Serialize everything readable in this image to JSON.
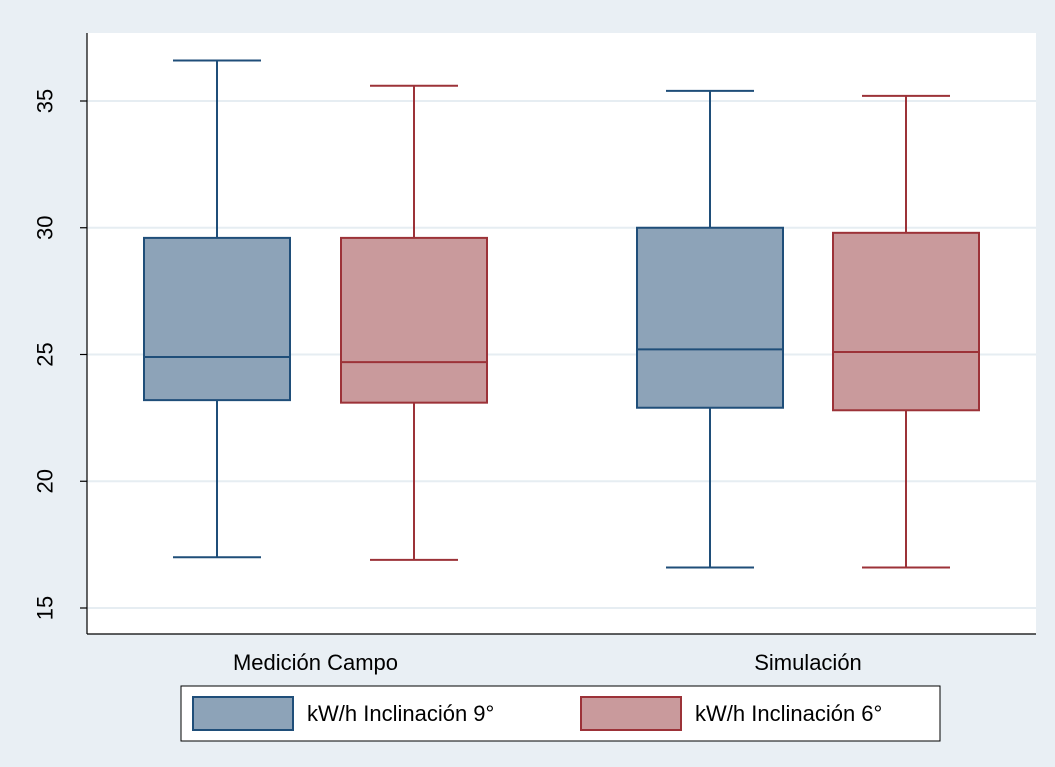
{
  "chart_data": {
    "type": "box",
    "categories": [
      "Medición Campo",
      "Simulación"
    ],
    "ylim": [
      14,
      38
    ],
    "yticks": [
      15,
      20,
      25,
      30,
      35
    ],
    "grid": true,
    "legend_position": "bottom",
    "series": [
      {
        "name": "kW/h Inclinación 9°",
        "fill": "#8da3b8",
        "stroke": "#1f4e79",
        "boxes": [
          {
            "min": 17.0,
            "q1": 23.2,
            "median": 24.9,
            "q3": 29.6,
            "max": 36.6
          },
          {
            "min": 16.6,
            "q1": 22.9,
            "median": 25.2,
            "q3": 30.0,
            "max": 35.4
          }
        ]
      },
      {
        "name": "kW/h Inclinación 6°",
        "fill": "#c99a9c",
        "stroke": "#9c3238",
        "boxes": [
          {
            "min": 16.9,
            "q1": 23.1,
            "median": 24.7,
            "q3": 29.6,
            "max": 35.6
          },
          {
            "min": 16.6,
            "q1": 22.8,
            "median": 25.1,
            "q3": 29.8,
            "max": 35.2
          }
        ]
      }
    ]
  }
}
